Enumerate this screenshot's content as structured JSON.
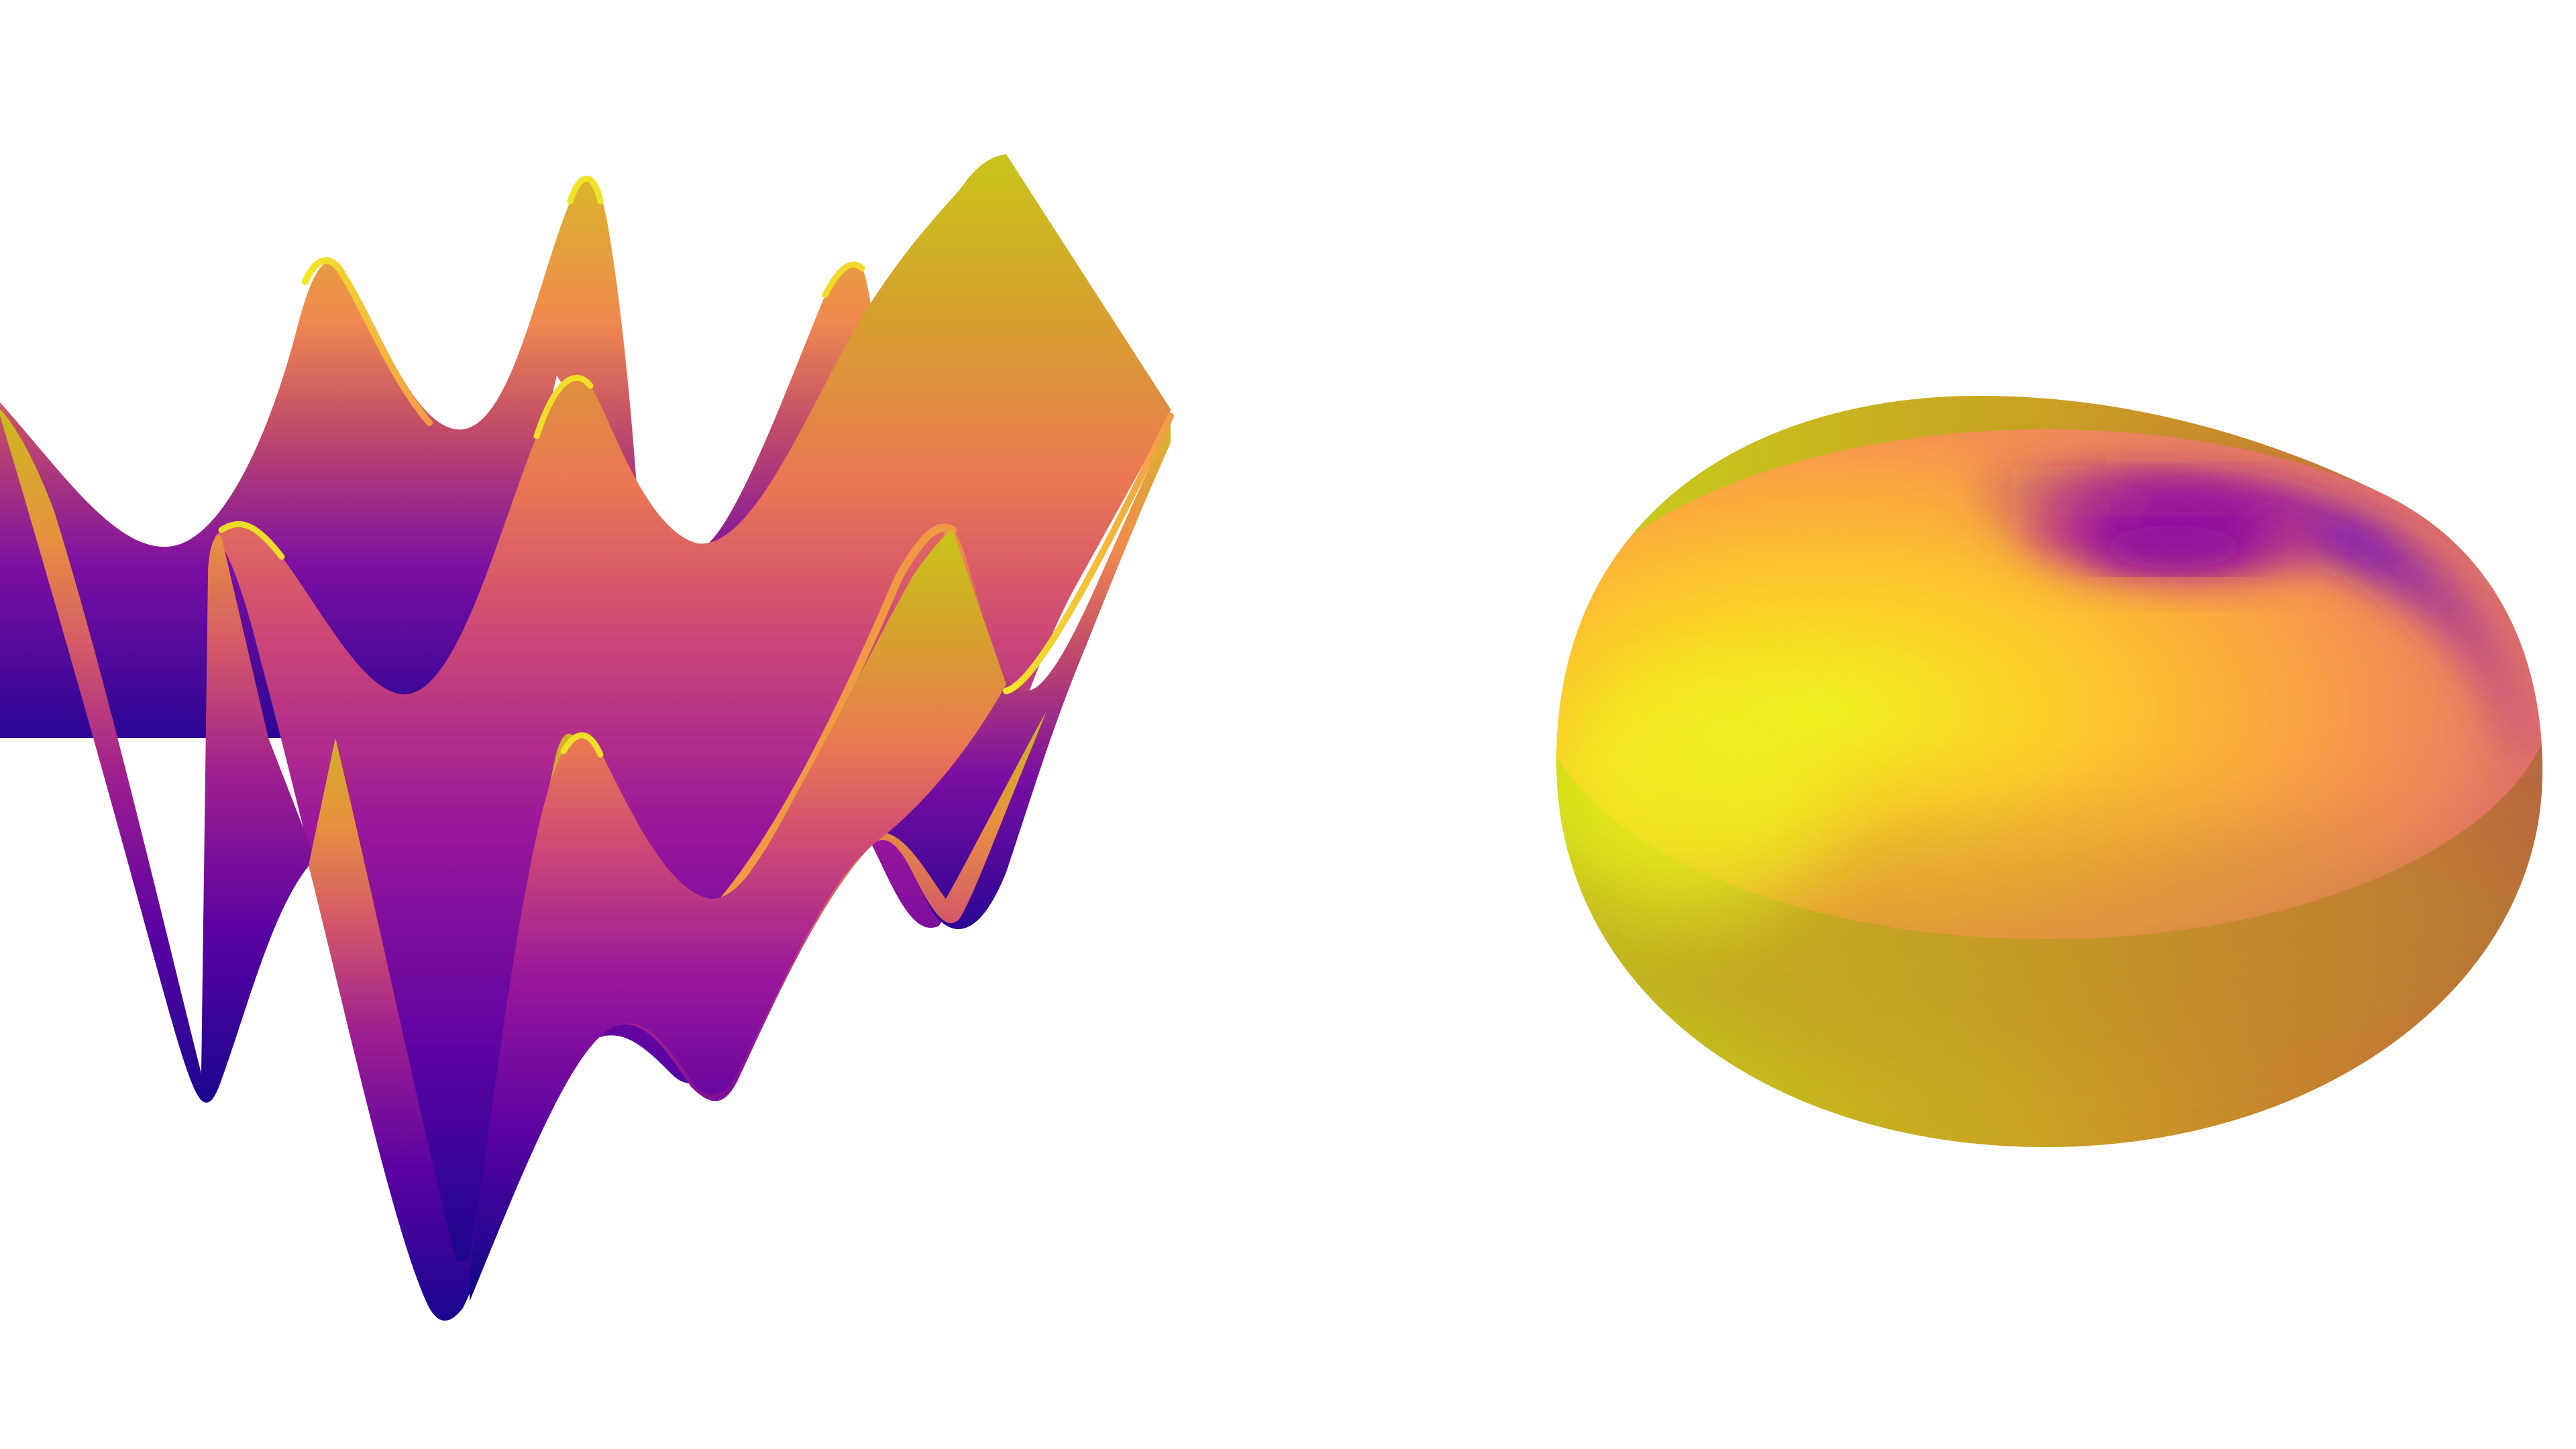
{
  "background": "#ffffff",
  "colormap": {
    "name": "plasma",
    "stops": [
      "#0d0887",
      "#5b02a3",
      "#9a179b",
      "#cb4678",
      "#eb7852",
      "#fbb32f",
      "#eff821"
    ]
  },
  "surface_plot": {
    "type": "3d-surface",
    "axes_visible": false,
    "grid": false
  },
  "torus_render": {
    "type": "3d-torus",
    "axes_visible": false
  }
}
